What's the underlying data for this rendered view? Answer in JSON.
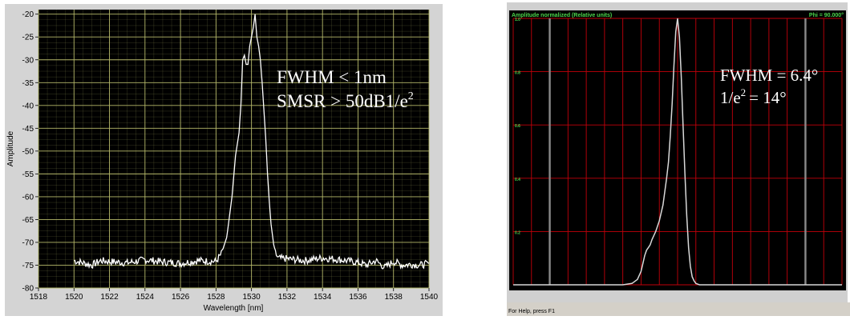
{
  "chart_data": [
    {
      "type": "line",
      "xlabel": "Wavelength [nm]",
      "ylabel": "Amplitude",
      "xlim": [
        1518,
        1540
      ],
      "ylim": [
        -80,
        -19
      ],
      "x_ticks": [
        "1518",
        "1520",
        "1522",
        "1524",
        "1526",
        "1528",
        "1530",
        "1532",
        "1534",
        "1536",
        "1538",
        "1540"
      ],
      "y_ticks": [
        "-20",
        "-25",
        "-30",
        "-35",
        "-40",
        "-45",
        "-50",
        "-55",
        "-60",
        "-65",
        "-70",
        "-75",
        "-80"
      ],
      "grid": true,
      "colors": {
        "plot_bg": "#000000",
        "grid": "#b5b86a",
        "trace": "#ffffff",
        "frame": "#c9c9c9"
      },
      "series": [
        {
          "x": [
            1520.0,
            1520.5,
            1521.0,
            1521.5,
            1522.0,
            1523.0,
            1524.0,
            1525.0,
            1526.0,
            1527.0,
            1528.0,
            1528.3,
            1528.6,
            1528.9,
            1529.1,
            1529.3,
            1529.4,
            1529.5,
            1529.6,
            1529.7,
            1529.8,
            1529.9,
            1530.0,
            1530.1,
            1530.2,
            1530.3,
            1530.4,
            1530.5,
            1530.6,
            1530.7,
            1530.8,
            1530.9,
            1531.0,
            1531.1,
            1531.2,
            1531.3,
            1531.5,
            1532.0,
            1533.0,
            1534.0,
            1535.0,
            1536.0,
            1536.5,
            1537.0,
            1537.5,
            1538.0,
            1538.5,
            1539.0,
            1539.5,
            1540.0
          ],
          "y": [
            -74,
            -74.5,
            -75,
            -74,
            -74.2,
            -74.5,
            -73.8,
            -74.3,
            -74.6,
            -74,
            -74.2,
            -72.5,
            -69,
            -60,
            -51,
            -46,
            -40,
            -30,
            -29,
            -31,
            -31,
            -27,
            -25,
            -23,
            -20,
            -25,
            -27,
            -30,
            -35,
            -41,
            -47,
            -55,
            -61,
            -66,
            -69,
            -72,
            -73.5,
            -73.6,
            -74,
            -73.4,
            -73.8,
            -74.4,
            -75,
            -74,
            -75.5,
            -74.2,
            -75,
            -74.8,
            -75,
            -74.6
          ]
        }
      ],
      "annotations": [
        "FWHM  < 1nm",
        "SMSR > 50dB1/e"
      ],
      "annotation_superscript": "2"
    },
    {
      "type": "line",
      "title": "Amplitude normalized (Relative units)",
      "title_right": "Phi = 90.000°",
      "xlim": [
        -90,
        90
      ],
      "ylim": [
        0,
        1
      ],
      "y_ticks": [
        "1.0",
        "0.8",
        "0.6",
        "0.4",
        "0.2"
      ],
      "grid": true,
      "colors": {
        "plot_bg": "#000000",
        "grid": "#c2000a",
        "trace": "#d8d8d8",
        "title_text": "#4cd64c",
        "markers": "#8a8a8a"
      },
      "marker_lines_x": [
        -70,
        70
      ],
      "series": [
        {
          "x": [
            -90,
            -30,
            -25,
            -22,
            -20,
            -19,
            -18,
            -17,
            -16,
            -15,
            -14,
            -12,
            -10,
            -8,
            -6,
            -5,
            -4,
            -3,
            -2,
            -1,
            0,
            1,
            2,
            3,
            4,
            5,
            6,
            7,
            8,
            9,
            10,
            12,
            15,
            20,
            90
          ],
          "y": [
            0,
            0,
            0.005,
            0.02,
            0.05,
            0.08,
            0.11,
            0.13,
            0.14,
            0.15,
            0.17,
            0.2,
            0.24,
            0.3,
            0.4,
            0.46,
            0.56,
            0.68,
            0.82,
            0.95,
            1.0,
            0.93,
            0.78,
            0.6,
            0.42,
            0.26,
            0.14,
            0.07,
            0.03,
            0.015,
            0.005,
            0,
            0,
            0,
            0
          ]
        }
      ],
      "annotations": [
        "FWHM = 6.4°",
        "1/e",
        "= 14°"
      ],
      "annotation_superscript": "2",
      "status_text": "For Help, press F1"
    }
  ]
}
